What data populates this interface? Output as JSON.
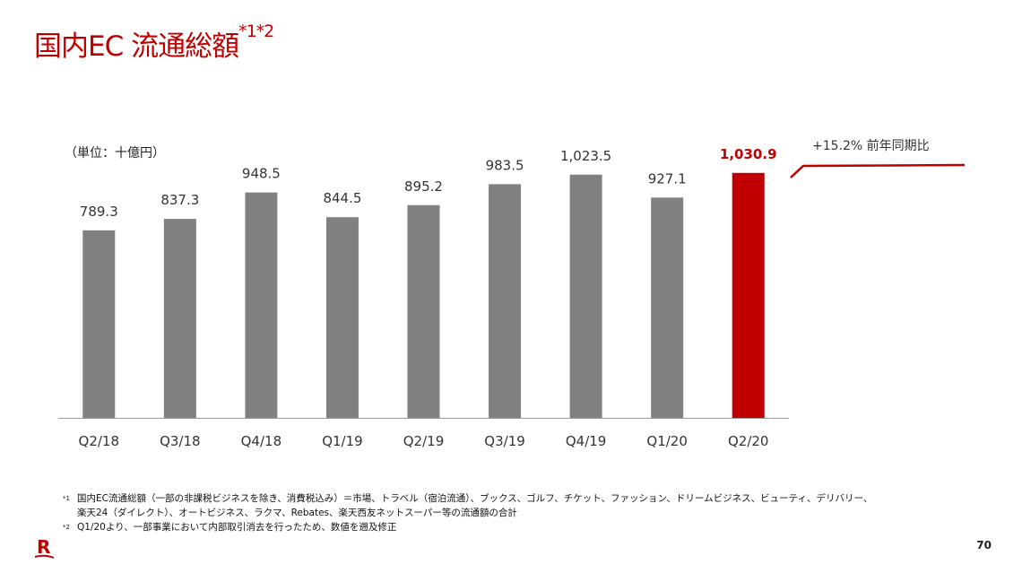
{
  "title": {
    "main": "国内EC 流通総額",
    "sup": "*1*2"
  },
  "unit_label": "（単位：十億円）",
  "yoy_label": "+15.2% 前年同期比",
  "chart_data": {
    "type": "bar",
    "categories": [
      "Q2/18",
      "Q3/18",
      "Q4/18",
      "Q1/19",
      "Q2/19",
      "Q3/19",
      "Q4/19",
      "Q1/20",
      "Q2/20"
    ],
    "values": [
      789.3,
      837.3,
      948.5,
      844.5,
      895.2,
      983.5,
      1023.5,
      927.1,
      1030.9
    ],
    "data_labels": [
      "789.3",
      "837.3",
      "948.5",
      "844.5",
      "895.2",
      "983.5",
      "1,023.5",
      "927.1",
      "1,030.9"
    ],
    "ylim": [
      0,
      1200
    ],
    "grid": false,
    "colors": {
      "default": "#808080",
      "highlight": "#c00000"
    },
    "highlight_index": 8
  },
  "footnotes": [
    {
      "mark": "*1",
      "text": "国内EC流通総額（一部の非課税ビジネスを除き、消費税込み）＝市場、トラベル（宿泊流通）、ブックス、ゴルフ、チケット、ファッション、ドリームビジネス、ビューティ、デリバリー、",
      "text2": "楽天24（ダイレクト）、オートビジネス、ラクマ、Rebates、楽天西友ネットスーパー等の流通額の合計"
    },
    {
      "mark": "*2",
      "text": "Q1/20より、一部事業において内部取引消去を行ったため、数値を遡及修正"
    }
  ],
  "page_number": "70",
  "logo": "R"
}
